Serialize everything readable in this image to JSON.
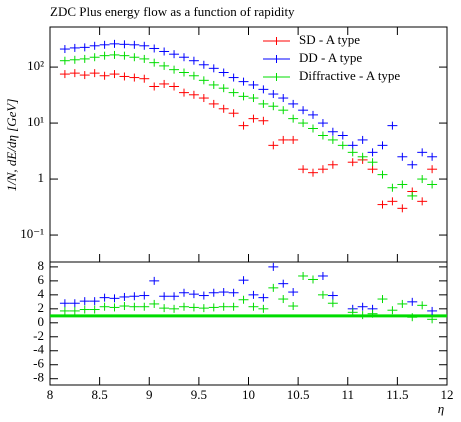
{
  "chart_data": [
    {
      "type": "errorbar",
      "title": "ZDC Plus energy flow as a function of rapidity",
      "ylabel": "1/N, dE/dη [GeV]",
      "yscale": "log",
      "legend": "upper right",
      "x": [
        8.15,
        8.25,
        8.35,
        8.45,
        8.55,
        8.65,
        8.75,
        8.85,
        8.95,
        9.05,
        9.15,
        9.25,
        9.35,
        9.45,
        9.55,
        9.65,
        9.75,
        9.85,
        9.95,
        10.05,
        10.15,
        10.25,
        10.35,
        10.45,
        10.55,
        10.65,
        10.75,
        10.85,
        10.95,
        11.05,
        11.15,
        11.25,
        11.35,
        11.45,
        11.55,
        11.65,
        11.75,
        11.85
      ],
      "xlim": [
        8,
        12
      ],
      "ylim": [
        0.033,
        520
      ],
      "yticks": [
        {
          "value": 0.1,
          "label": "10⁻¹"
        },
        1,
        {
          "value": 10,
          "label": "10¹"
        },
        {
          "value": 100,
          "label": "10²"
        }
      ],
      "series": [
        {
          "name": "SD - A type",
          "color": "#ff0000",
          "values": [
            75,
            78,
            72,
            78,
            70,
            75,
            68,
            65,
            62,
            45,
            50,
            45,
            35,
            32,
            28,
            22,
            18,
            15,
            9,
            12,
            11,
            4,
            5,
            5,
            1.5,
            1.3,
            1.5,
            1.8,
            null,
            2,
            2.2,
            1.5,
            0.35,
            0.4,
            0.3,
            0.6,
            0.4,
            1.5
          ]
        },
        {
          "name": "DD - A type",
          "color": "#0000ff",
          "values": [
            210,
            220,
            225,
            240,
            250,
            260,
            255,
            250,
            240,
            215,
            190,
            170,
            150,
            130,
            110,
            95,
            80,
            65,
            55,
            48,
            40,
            33,
            28,
            22,
            17,
            14,
            10,
            7,
            6,
            4,
            5,
            3,
            4,
            9,
            2.5,
            1.8,
            3,
            2.5
          ]
        },
        {
          "name": "Diffractive - A type",
          "color": "#00dd00",
          "values": [
            130,
            135,
            140,
            150,
            160,
            165,
            160,
            150,
            140,
            120,
            105,
            90,
            80,
            70,
            58,
            48,
            42,
            35,
            30,
            28,
            22,
            20,
            17,
            12,
            10,
            8,
            6,
            5,
            4,
            3,
            2.5,
            2,
            1.2,
            0.7,
            0.8,
            0.5,
            1,
            0.8
          ]
        }
      ]
    },
    {
      "type": "ratio",
      "xlabel": "η",
      "x": [
        8.15,
        8.25,
        8.35,
        8.45,
        8.55,
        8.65,
        8.75,
        8.85,
        8.95,
        9.05,
        9.15,
        9.25,
        9.35,
        9.45,
        9.55,
        9.65,
        9.75,
        9.85,
        9.95,
        10.05,
        10.15,
        10.25,
        10.35,
        10.45,
        10.55,
        10.65,
        10.75,
        10.85,
        10.95,
        11.05,
        11.15,
        11.25,
        11.35,
        11.45,
        11.55,
        11.65,
        11.75,
        11.85
      ],
      "xlim": [
        8,
        12
      ],
      "xticks": [
        8,
        8.5,
        9,
        9.5,
        10,
        10.5,
        11,
        11.5,
        12
      ],
      "ylim": [
        -8.9,
        8.7
      ],
      "yticks": [
        -8,
        -6,
        -4,
        -2,
        0,
        2,
        4,
        6,
        8
      ],
      "reference": 1,
      "reference_color": "#00dd00",
      "series": [
        {
          "color": "#0000ff",
          "values": [
            2.8,
            2.8,
            3.1,
            3.1,
            3.6,
            3.5,
            3.7,
            3.8,
            3.9,
            6,
            3.8,
            3.8,
            4.3,
            4.1,
            3.9,
            4.3,
            4.4,
            4.3,
            6.1,
            4,
            3.6,
            8,
            5.6,
            4.4,
            null,
            null,
            6.7,
            3.9,
            null,
            2,
            2.3,
            2,
            null,
            null,
            null,
            3,
            null,
            1.7
          ]
        },
        {
          "color": "#00dd00",
          "values": [
            1.7,
            1.7,
            1.9,
            1.9,
            2.3,
            2.2,
            2.4,
            2.3,
            2.3,
            2.7,
            2.1,
            2,
            2.3,
            2.2,
            2.1,
            2.2,
            2.3,
            2.3,
            3.3,
            2.3,
            2,
            5,
            3.4,
            2.4,
            6.7,
            6.2,
            4,
            2.8,
            null,
            1.5,
            1.1,
            1.3,
            3.4,
            1.8,
            2.7,
            0.8,
            2.5,
            0.5
          ]
        }
      ]
    }
  ]
}
